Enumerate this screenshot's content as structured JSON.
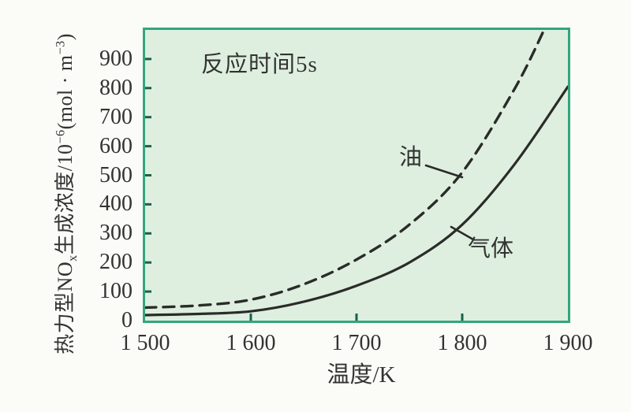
{
  "chart_data": {
    "type": "line",
    "annotation": "反应时间5s",
    "xlabel": "温度/K",
    "ylabel": "热力型NOx生成浓度/10−6(mol·m−3)",
    "xlim": [
      1500,
      1900
    ],
    "ylim": [
      0,
      1000
    ],
    "grid": false,
    "legend_position": "inline-labels",
    "x_ticks": [
      {
        "label": "1 500",
        "value": 1500,
        "mark": false
      },
      {
        "label": "1 600",
        "value": 1600,
        "mark": true
      },
      {
        "label": "1 700",
        "value": 1700,
        "mark": true
      },
      {
        "label": "1 800",
        "value": 1800,
        "mark": true
      },
      {
        "label": "1 900",
        "value": 1900,
        "mark": false
      }
    ],
    "y_ticks": [
      {
        "label": "900",
        "value": 900,
        "mark": true
      },
      {
        "label": "800",
        "value": 800,
        "mark": true
      },
      {
        "label": "700",
        "value": 700,
        "mark": true
      },
      {
        "label": "600",
        "value": 600,
        "mark": true
      },
      {
        "label": "500",
        "value": 500,
        "mark": true
      },
      {
        "label": "400",
        "value": 400,
        "mark": true
      },
      {
        "label": "300",
        "value": 300,
        "mark": true
      },
      {
        "label": "200",
        "value": 200,
        "mark": true
      },
      {
        "label": "100",
        "value": 100,
        "mark": true
      },
      {
        "label": "0",
        "value": 0,
        "mark": false
      }
    ],
    "series": [
      {
        "name": "油",
        "line_style": "dashed",
        "color": "#2b2b28",
        "x": [
          1500,
          1550,
          1600,
          1650,
          1700,
          1750,
          1800,
          1850,
          1880
        ],
        "values": [
          45,
          52,
          72,
          125,
          210,
          330,
          510,
          800,
          1020
        ]
      },
      {
        "name": "气体",
        "line_style": "solid",
        "color": "#2b2b28",
        "x": [
          1500,
          1550,
          1600,
          1650,
          1700,
          1750,
          1800,
          1850,
          1900
        ],
        "values": [
          19,
          23,
          32,
          65,
          120,
          200,
          330,
          540,
          805
        ]
      }
    ]
  },
  "y_title_parts": {
    "p1": "热力型NO",
    "p2": "x",
    "p3": "生成浓度/10",
    "p4": "−6",
    "p5": "(mol · m",
    "p6": "−3",
    "p7": ")"
  },
  "colors": {
    "page_bg": "#fbfbf8",
    "plot_bg": "#deefe0",
    "frame": "#32a67d",
    "tick": "#19614a",
    "text": "#333331"
  }
}
